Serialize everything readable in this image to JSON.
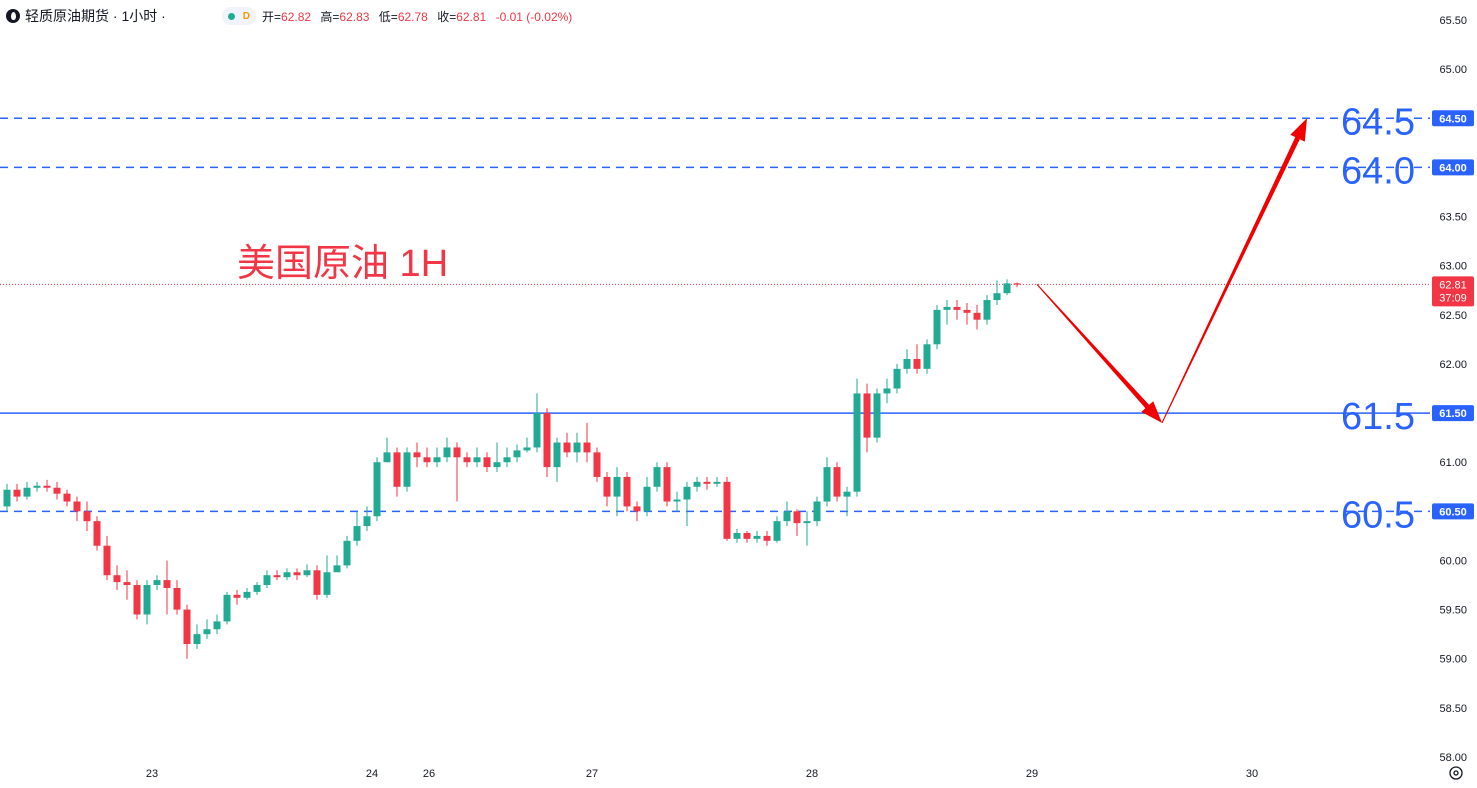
{
  "header": {
    "symbol_title": "轻质原油期货 · 1小时 ·",
    "badge": "D",
    "open_label": "开=",
    "open": "62.82",
    "high_label": "高=",
    "high": "62.83",
    "low_label": "低=",
    "low": "62.78",
    "close_label": "收=",
    "close": "62.81",
    "change": "-0.01 (-0.02%)"
  },
  "colors": {
    "up": "#22ab94",
    "down": "#f23645",
    "level": "#2962ff",
    "annotation": "#f23645",
    "arrow": "#f20000"
  },
  "chart_data": {
    "type": "candlestick",
    "title": "美国原油 1H",
    "ylim": [
      58.0,
      65.5
    ],
    "y_ticks": [
      "58.00",
      "58.50",
      "59.00",
      "59.50",
      "60.00",
      "60.50",
      "61.00",
      "61.50",
      "62.00",
      "62.50",
      "63.00",
      "63.50",
      "64.00",
      "64.50",
      "65.00",
      "65.50"
    ],
    "x_ticks": [
      {
        "label": "23",
        "index": 14.5
      },
      {
        "label": "24",
        "index": 36.5
      },
      {
        "label": "26",
        "index": 42.2
      },
      {
        "label": "27",
        "index": 58.5
      },
      {
        "label": "28",
        "index": 80.5
      },
      {
        "label": "29",
        "index": 102.5
      },
      {
        "label": "30",
        "index": 124.5
      }
    ],
    "candles": [
      [
        60.55,
        60.72,
        60.78,
        60.5
      ],
      [
        60.72,
        60.65,
        60.78,
        60.6
      ],
      [
        60.65,
        60.74,
        60.8,
        60.62
      ],
      [
        60.74,
        60.76,
        60.8,
        60.7
      ],
      [
        60.76,
        60.74,
        60.82,
        60.7
      ],
      [
        60.74,
        60.68,
        60.8,
        60.62
      ],
      [
        60.68,
        60.6,
        60.72,
        60.55
      ],
      [
        60.6,
        60.5,
        60.65,
        60.4
      ],
      [
        60.5,
        60.4,
        60.6,
        60.3
      ],
      [
        60.4,
        60.15,
        60.45,
        60.1
      ],
      [
        60.15,
        59.85,
        60.25,
        59.8
      ],
      [
        59.85,
        59.78,
        59.95,
        59.7
      ],
      [
        59.78,
        59.75,
        59.9,
        59.6
      ],
      [
        59.75,
        59.45,
        59.8,
        59.4
      ],
      [
        59.45,
        59.75,
        59.8,
        59.35
      ],
      [
        59.75,
        59.8,
        59.85,
        59.7
      ],
      [
        59.8,
        59.72,
        60.0,
        59.45
      ],
      [
        59.72,
        59.5,
        59.8,
        59.45
      ],
      [
        59.5,
        59.15,
        59.55,
        59.0
      ],
      [
        59.15,
        59.25,
        59.35,
        59.1
      ],
      [
        59.25,
        59.3,
        59.4,
        59.2
      ],
      [
        59.3,
        59.38,
        59.45,
        59.25
      ],
      [
        59.38,
        59.65,
        59.68,
        59.35
      ],
      [
        59.65,
        59.62,
        59.7,
        59.55
      ],
      [
        59.62,
        59.68,
        59.72,
        59.6
      ],
      [
        59.68,
        59.75,
        59.78,
        59.65
      ],
      [
        59.75,
        59.85,
        59.9,
        59.72
      ],
      [
        59.85,
        59.83,
        59.9,
        59.8
      ],
      [
        59.83,
        59.88,
        59.92,
        59.8
      ],
      [
        59.88,
        59.85,
        59.92,
        59.8
      ],
      [
        59.85,
        59.9,
        59.96,
        59.83
      ],
      [
        59.9,
        59.65,
        59.95,
        59.6
      ],
      [
        59.65,
        59.88,
        60.05,
        59.62
      ],
      [
        59.88,
        59.95,
        60.05,
        59.9
      ],
      [
        59.95,
        60.2,
        60.25,
        59.92
      ],
      [
        60.2,
        60.35,
        60.5,
        60.15
      ],
      [
        60.35,
        60.45,
        60.55,
        60.3
      ],
      [
        60.45,
        61.0,
        61.05,
        60.4
      ],
      [
        61.0,
        61.1,
        61.25,
        61.0
      ],
      [
        61.1,
        60.75,
        61.15,
        60.65
      ],
      [
        60.75,
        61.1,
        61.15,
        60.7
      ],
      [
        61.1,
        61.05,
        61.2,
        60.95
      ],
      [
        61.05,
        61.0,
        61.15,
        60.95
      ],
      [
        61.0,
        61.05,
        61.15,
        60.95
      ],
      [
        61.05,
        61.15,
        61.25,
        61.0
      ],
      [
        61.15,
        61.05,
        61.2,
        60.6
      ],
      [
        61.05,
        61.0,
        61.1,
        60.95
      ],
      [
        61.0,
        61.05,
        61.15,
        60.95
      ],
      [
        61.05,
        60.95,
        61.1,
        60.9
      ],
      [
        60.95,
        61.0,
        61.2,
        60.9
      ],
      [
        61.0,
        61.05,
        61.15,
        60.95
      ],
      [
        61.05,
        61.12,
        61.18,
        61.0
      ],
      [
        61.12,
        61.15,
        61.25,
        61.1
      ],
      [
        61.15,
        61.5,
        61.7,
        61.1
      ],
      [
        61.5,
        60.95,
        61.55,
        60.85
      ],
      [
        60.95,
        61.2,
        61.25,
        60.8
      ],
      [
        61.2,
        61.1,
        61.3,
        61.05
      ],
      [
        61.1,
        61.2,
        61.3,
        61.0
      ],
      [
        61.2,
        61.1,
        61.4,
        61.0
      ],
      [
        61.1,
        60.85,
        61.15,
        60.8
      ],
      [
        60.85,
        60.65,
        60.9,
        60.55
      ],
      [
        60.65,
        60.85,
        60.95,
        60.45
      ],
      [
        60.85,
        60.55,
        60.9,
        60.5
      ],
      [
        60.55,
        60.5,
        60.6,
        60.4
      ],
      [
        60.5,
        60.75,
        60.85,
        60.45
      ],
      [
        60.75,
        60.95,
        61.0,
        60.7
      ],
      [
        60.95,
        60.6,
        61.0,
        60.55
      ],
      [
        60.6,
        60.62,
        60.7,
        60.5
      ],
      [
        60.62,
        60.75,
        60.8,
        60.35
      ],
      [
        60.75,
        60.8,
        60.85,
        60.7
      ],
      [
        60.8,
        60.78,
        60.85,
        60.72
      ],
      [
        60.78,
        60.8,
        60.85,
        60.75
      ],
      [
        60.8,
        60.22,
        60.85,
        60.2
      ],
      [
        60.22,
        60.28,
        60.32,
        60.18
      ],
      [
        60.28,
        60.22,
        60.3,
        60.18
      ],
      [
        60.22,
        60.25,
        60.3,
        60.18
      ],
      [
        60.25,
        60.2,
        60.3,
        60.15
      ],
      [
        60.2,
        60.4,
        60.45,
        60.18
      ],
      [
        60.4,
        60.5,
        60.6,
        60.35
      ],
      [
        60.5,
        60.38,
        60.52,
        60.25
      ],
      [
        60.38,
        60.4,
        60.5,
        60.15
      ],
      [
        60.4,
        60.6,
        60.65,
        60.35
      ],
      [
        60.6,
        60.95,
        61.05,
        60.55
      ],
      [
        60.95,
        60.65,
        61.0,
        60.6
      ],
      [
        60.65,
        60.7,
        60.75,
        60.45
      ],
      [
        60.7,
        61.7,
        61.85,
        60.65
      ],
      [
        61.7,
        61.25,
        61.8,
        61.1
      ],
      [
        61.25,
        61.7,
        61.75,
        61.2
      ],
      [
        61.7,
        61.75,
        61.85,
        61.6
      ],
      [
        61.75,
        61.95,
        62.0,
        61.7
      ],
      [
        61.95,
        62.05,
        62.15,
        61.9
      ],
      [
        62.05,
        61.95,
        62.2,
        61.9
      ],
      [
        61.95,
        62.2,
        62.25,
        61.9
      ],
      [
        62.2,
        62.55,
        62.6,
        62.15
      ],
      [
        62.55,
        62.58,
        62.65,
        62.4
      ],
      [
        62.58,
        62.55,
        62.65,
        62.45
      ],
      [
        62.55,
        62.52,
        62.62,
        62.4
      ],
      [
        62.52,
        62.45,
        62.6,
        62.35
      ],
      [
        62.45,
        62.65,
        62.7,
        62.4
      ],
      [
        62.65,
        62.72,
        62.85,
        62.6
      ],
      [
        62.72,
        62.82,
        62.86,
        62.7
      ],
      [
        62.82,
        62.81,
        62.83,
        62.78
      ]
    ],
    "levels": [
      {
        "value": 64.5,
        "label": "64.5",
        "tag": "64.50",
        "style": "dashed"
      },
      {
        "value": 64.0,
        "label": "64.0",
        "tag": "64.00",
        "style": "dashed"
      },
      {
        "value": 61.5,
        "label": "61.5",
        "tag": "61.50",
        "style": "solid"
      },
      {
        "value": 60.5,
        "label": "60.5",
        "tag": "60.50",
        "style": "dashed"
      }
    ],
    "last_price": {
      "value": 62.81,
      "tag": "62.81",
      "countdown": "37:09"
    },
    "arrows": [
      {
        "from": [
          103.0,
          62.81
        ],
        "to": [
          115.5,
          61.4
        ]
      },
      {
        "from": [
          115.5,
          61.4
        ],
        "to": [
          130.0,
          64.5
        ]
      }
    ]
  }
}
